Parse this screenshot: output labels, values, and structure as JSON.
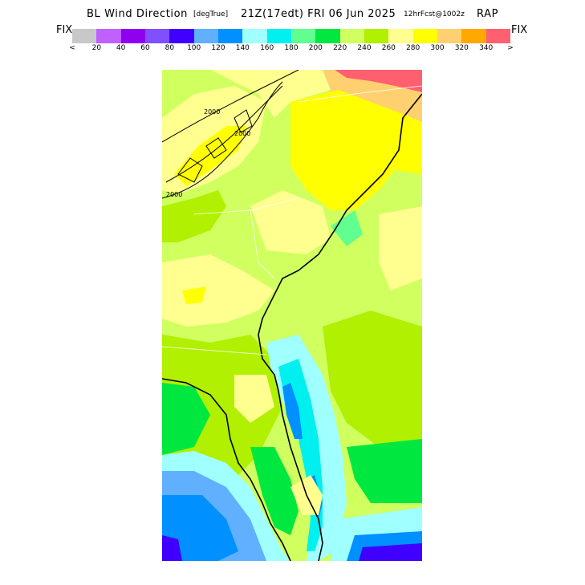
{
  "title": {
    "main": "BL Wind Direction",
    "unit": "[degTrue]",
    "time": "21Z(17edt) FRI 06 Jun 2025",
    "forecast": "12hrFcst@1002z",
    "model": "RAP"
  },
  "legend": {
    "fix_left": "FIX",
    "fix_right": "FIX",
    "colors": [
      "#c8c8c8",
      "#c060ff",
      "#9000f0",
      "#8050ff",
      "#4000ff",
      "#60b0ff",
      "#0090ff",
      "#a0ffff",
      "#00f0f0",
      "#60ff90",
      "#00e840",
      "#d0ff60",
      "#b0f000",
      "#ffff90",
      "#ffff00",
      "#ffd070",
      "#ffa800",
      "#ff6070"
    ],
    "ticks": [
      "<",
      "20",
      "40",
      "60",
      "80",
      "100",
      "120",
      "140",
      "160",
      "180",
      "200",
      "220",
      "240",
      "260",
      "280",
      "300",
      "320",
      "340",
      ">"
    ]
  },
  "map": {
    "contour_labels": [
      "2000",
      "2000",
      "2000"
    ]
  }
}
